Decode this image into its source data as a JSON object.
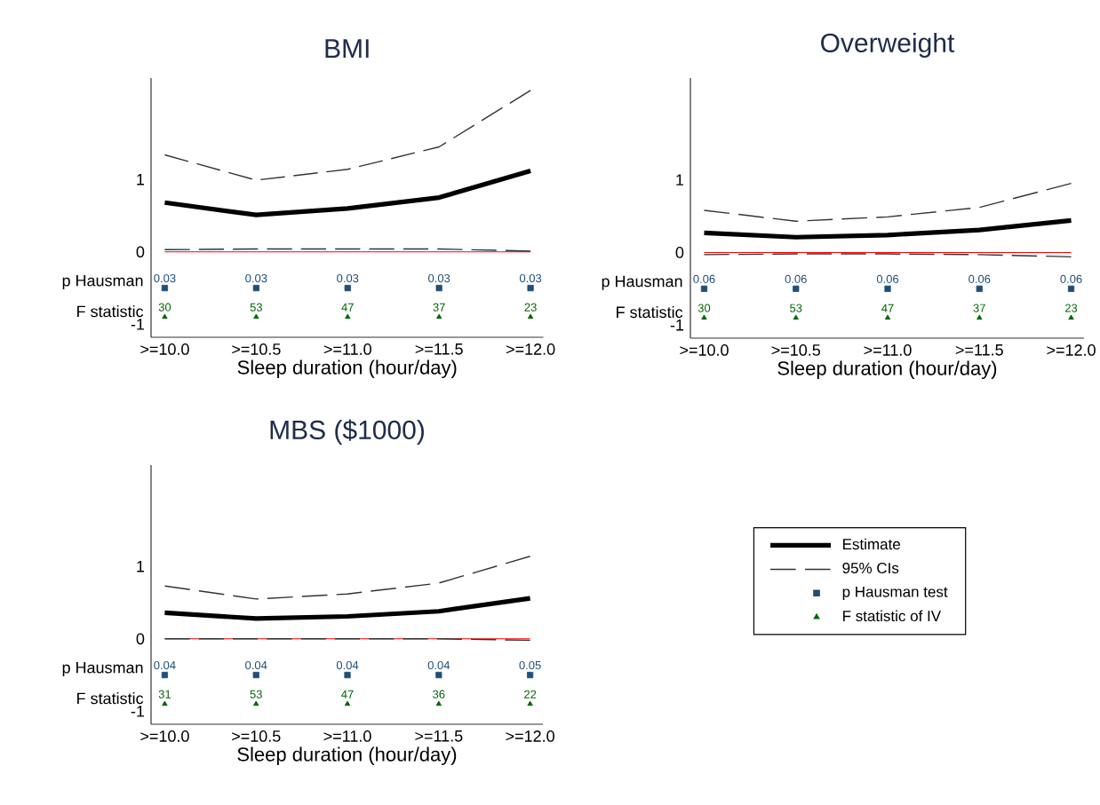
{
  "chart_data": [
    {
      "type": "line",
      "title": "BMI",
      "xlabel": "Sleep duration (hour/day)",
      "categories": [
        ">=10.0",
        ">=10.5",
        ">=11.0",
        ">=11.5",
        ">=12.0"
      ],
      "ylim": [
        -1.18,
        2.4
      ],
      "yticks": [
        -1,
        0,
        1
      ],
      "grid": false,
      "legend": false,
      "ref_lines": [
        {
          "axis": "y",
          "value": 0,
          "color": "#ff0000"
        }
      ],
      "series": [
        {
          "color": "#000000",
          "line_style": "solid",
          "marker": "none",
          "values": [
            0.68,
            0.51,
            0.6,
            0.75,
            1.12
          ]
        },
        {
          "color": "#333333",
          "line_style": "dashed",
          "marker": "none",
          "values": [
            1.34,
            0.99,
            1.14,
            1.45,
            2.23
          ]
        },
        {
          "color": "#333333",
          "line_style": "dashed",
          "marker": "none",
          "values": [
            0.03,
            0.04,
            0.04,
            0.04,
            0.01
          ]
        },
        {
          "type": "scatter",
          "color": "#1f4e79",
          "marker": "square",
          "values": [
            -0.5,
            -0.5,
            -0.5,
            -0.5,
            -0.5
          ]
        },
        {
          "type": "scatter",
          "color": "#006400",
          "marker": "triangle",
          "values": [
            -0.9,
            -0.9,
            -0.9,
            -0.9,
            -0.9
          ]
        }
      ],
      "annotations": [
        "p Hausman",
        "F statistic",
        {
          "text": "0.03",
          "x": ">=10.0",
          "y": -0.5
        },
        {
          "text": "0.03",
          "x": ">=10.5",
          "y": -0.5
        },
        {
          "text": "0.03",
          "x": ">=11.0",
          "y": -0.5
        },
        {
          "text": "0.03",
          "x": ">=11.5",
          "y": -0.5
        },
        {
          "text": "0.03",
          "x": ">=12.0",
          "y": -0.5
        },
        {
          "text": "30",
          "x": ">=10.0",
          "y": -0.9
        },
        {
          "text": "53",
          "x": ">=10.5",
          "y": -0.9
        },
        {
          "text": "47",
          "x": ">=11.0",
          "y": -0.9
        },
        {
          "text": "37",
          "x": ">=11.5",
          "y": -0.9
        },
        {
          "text": "23",
          "x": ">=12.0",
          "y": -0.9
        }
      ]
    },
    {
      "type": "line",
      "title": "Overweight",
      "xlabel": "Sleep duration (hour/day)",
      "categories": [
        ">=10.0",
        ">=10.5",
        ">=11.0",
        ">=11.5",
        ">=12.0"
      ],
      "ylim": [
        -1.18,
        2.4
      ],
      "yticks": [
        -1,
        0,
        1
      ],
      "grid": false,
      "legend": false,
      "ref_lines": [
        {
          "axis": "y",
          "value": 0,
          "color": "#ff0000"
        }
      ],
      "series": [
        {
          "color": "#000000",
          "line_style": "solid",
          "marker": "none",
          "values": [
            0.27,
            0.21,
            0.24,
            0.31,
            0.44
          ]
        },
        {
          "color": "#333333",
          "line_style": "dashed",
          "marker": "none",
          "values": [
            0.58,
            0.43,
            0.49,
            0.62,
            0.95
          ]
        },
        {
          "color": "#333333",
          "line_style": "dashed",
          "marker": "none",
          "values": [
            -0.03,
            -0.02,
            -0.02,
            -0.03,
            -0.06
          ]
        },
        {
          "type": "scatter",
          "color": "#1f4e79",
          "marker": "square",
          "values": [
            -0.5,
            -0.5,
            -0.5,
            -0.5,
            -0.5
          ]
        },
        {
          "type": "scatter",
          "color": "#006400",
          "marker": "triangle",
          "values": [
            -0.9,
            -0.9,
            -0.9,
            -0.9,
            -0.9
          ]
        }
      ],
      "annotations": [
        "p Hausman",
        "F statistic",
        {
          "text": "0.06",
          "x": ">=10.0",
          "y": -0.5
        },
        {
          "text": "0.06",
          "x": ">=10.5",
          "y": -0.5
        },
        {
          "text": "0.06",
          "x": ">=11.0",
          "y": -0.5
        },
        {
          "text": "0.06",
          "x": ">=11.5",
          "y": -0.5
        },
        {
          "text": "0.06",
          "x": ">=12.0",
          "y": -0.5
        },
        {
          "text": "30",
          "x": ">=10.0",
          "y": -0.9
        },
        {
          "text": "53",
          "x": ">=10.5",
          "y": -0.9
        },
        {
          "text": "47",
          "x": ">=11.0",
          "y": -0.9
        },
        {
          "text": "37",
          "x": ">=11.5",
          "y": -0.9
        },
        {
          "text": "23",
          "x": ">=12.0",
          "y": -0.9
        }
      ]
    },
    {
      "type": "line",
      "title": "MBS ($1000)",
      "xlabel": "Sleep duration (hour/day)",
      "categories": [
        ">=10.0",
        ">=10.5",
        ">=11.0",
        ">=11.5",
        ">=12.0"
      ],
      "ylim": [
        -1.18,
        2.4
      ],
      "yticks": [
        -1,
        0,
        1
      ],
      "grid": false,
      "legend": "right",
      "ref_lines": [
        {
          "axis": "y",
          "value": 0,
          "color": "#ff0000"
        }
      ],
      "series": [
        {
          "name": "Estimate",
          "color": "#000000",
          "line_style": "solid",
          "marker": "none",
          "values": [
            0.36,
            0.28,
            0.31,
            0.38,
            0.56
          ]
        },
        {
          "name": "95% CIs",
          "color": "#333333",
          "line_style": "dashed",
          "marker": "none",
          "values": [
            0.73,
            0.55,
            0.62,
            0.77,
            1.14
          ]
        },
        {
          "color": "#333333",
          "line_style": "dashed",
          "marker": "none",
          "values": [
            0.0,
            0.0,
            0.0,
            0.0,
            -0.02
          ]
        },
        {
          "type": "scatter",
          "name": "p Hausman test",
          "color": "#1f4e79",
          "marker": "square",
          "values": [
            -0.5,
            -0.5,
            -0.5,
            -0.5,
            -0.5
          ]
        },
        {
          "type": "scatter",
          "name": "F statistic of IV",
          "color": "#006400",
          "marker": "triangle",
          "values": [
            -0.9,
            -0.9,
            -0.9,
            -0.9,
            -0.9
          ]
        }
      ],
      "annotations": [
        "p Hausman",
        "F statistic",
        {
          "text": "0.04",
          "x": ">=10.0",
          "y": -0.5
        },
        {
          "text": "0.04",
          "x": ">=10.5",
          "y": -0.5
        },
        {
          "text": "0.04",
          "x": ">=11.0",
          "y": -0.5
        },
        {
          "text": "0.04",
          "x": ">=11.5",
          "y": -0.5
        },
        {
          "text": "0.05",
          "x": ">=12.0",
          "y": -0.5
        },
        {
          "text": "31",
          "x": ">=10.0",
          "y": -0.9
        },
        {
          "text": "53",
          "x": ">=10.5",
          "y": -0.9
        },
        {
          "text": "47",
          "x": ">=11.0",
          "y": -0.9
        },
        {
          "text": "36",
          "x": ">=11.5",
          "y": -0.9
        },
        {
          "text": "22",
          "x": ">=12.0",
          "y": -0.9
        }
      ]
    }
  ]
}
